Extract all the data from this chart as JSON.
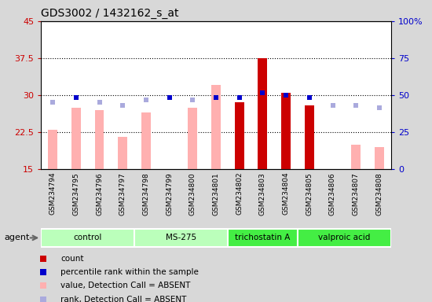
{
  "title": "GDS3002 / 1432162_s_at",
  "samples": [
    "GSM234794",
    "GSM234795",
    "GSM234796",
    "GSM234797",
    "GSM234798",
    "GSM234799",
    "GSM234800",
    "GSM234801",
    "GSM234802",
    "GSM234803",
    "GSM234804",
    "GSM234805",
    "GSM234806",
    "GSM234807",
    "GSM234808"
  ],
  "groups": [
    {
      "label": "control",
      "samples": [
        0,
        1,
        2,
        3
      ],
      "color": "#bbffbb"
    },
    {
      "label": "MS-275",
      "samples": [
        4,
        5,
        6,
        7
      ],
      "color": "#bbffbb"
    },
    {
      "label": "trichostatin A",
      "samples": [
        8,
        9,
        10
      ],
      "color": "#44ee44"
    },
    {
      "label": "valproic acid",
      "samples": [
        11,
        12,
        13,
        14
      ],
      "color": "#44ee44"
    }
  ],
  "bar_values": [
    23.0,
    27.5,
    27.0,
    21.5,
    26.5,
    null,
    27.5,
    32.0,
    28.5,
    37.5,
    30.5,
    28.0,
    null,
    20.0,
    19.5
  ],
  "bar_colors": [
    "#ffb0b0",
    "#ffb0b0",
    "#ffb0b0",
    "#ffb0b0",
    "#ffb0b0",
    "#ffb0b0",
    "#ffb0b0",
    "#ffb0b0",
    "#cc0000",
    "#cc0000",
    "#cc0000",
    "#cc0000",
    "#ffb0b0",
    "#ffb0b0",
    "#ffb0b0"
  ],
  "rank_present_values": [
    null,
    29.5,
    null,
    null,
    null,
    29.5,
    null,
    29.5,
    29.5,
    30.5,
    30.0,
    29.5,
    null,
    null,
    null
  ],
  "rank_absent_values": [
    28.5,
    null,
    28.5,
    28.0,
    29.0,
    null,
    29.0,
    null,
    null,
    null,
    null,
    null,
    28.0,
    28.0,
    27.5
  ],
  "ylim_left": [
    15,
    45
  ],
  "ylim_right": [
    0,
    100
  ],
  "yticks_left": [
    15,
    22.5,
    30,
    37.5,
    45
  ],
  "yticks_right": [
    0,
    25,
    50,
    75,
    100
  ],
  "ytick_labels_left": [
    "15",
    "22.5",
    "30",
    "37.5",
    "45"
  ],
  "ytick_labels_right": [
    "0",
    "25",
    "50",
    "75",
    "100%"
  ],
  "agent_label": "agent",
  "legend_items": [
    {
      "label": "count",
      "color": "#cc0000"
    },
    {
      "label": "percentile rank within the sample",
      "color": "#0000cc"
    },
    {
      "label": "value, Detection Call = ABSENT",
      "color": "#ffb0b0"
    },
    {
      "label": "rank, Detection Call = ABSENT",
      "color": "#aaaadd"
    }
  ],
  "bg_color": "#d8d8d8",
  "plot_bg": "#ffffff"
}
